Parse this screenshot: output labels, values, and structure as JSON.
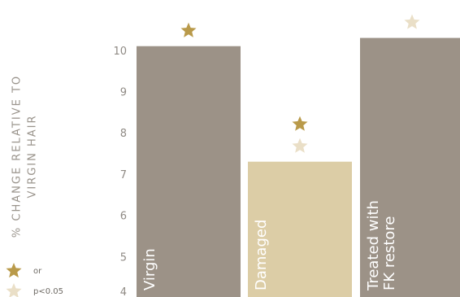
{
  "colors": {
    "bar_dark": "#9c9287",
    "bar_light": "#dccda6",
    "star_gold": "#b99a4a",
    "star_light": "#eadfc7",
    "text": "#8f8a84"
  },
  "legend": {
    "items": [
      {
        "icon": "star-gold-icon",
        "text": "or"
      },
      {
        "icon": "star-light-icon",
        "text": "p<0.05"
      }
    ]
  },
  "chart_data": {
    "type": "bar",
    "title": "",
    "ylabel": "% CHANGE RELATIVE TO VIRGIN HAIR",
    "ylabel_lines": [
      "% CHANGE RELATIVE TO",
      "VIRGIN HAIR"
    ],
    "xlabel": "",
    "ylim": [
      4,
      10.6
    ],
    "yticks": [
      4,
      5,
      6,
      7,
      8,
      9,
      10
    ],
    "categories": [
      "Virgin",
      "Damaged",
      "Treated with FK restore"
    ],
    "category_label_lines": [
      [
        "Virgin"
      ],
      [
        "Damaged"
      ],
      [
        "Treated with",
        "FK restore"
      ]
    ],
    "values": [
      10.1,
      7.3,
      10.3
    ],
    "bar_colors": [
      "#9c9287",
      "#dccda6",
      "#9c9287"
    ],
    "significance": [
      [
        "gold"
      ],
      [
        "gold",
        "light"
      ],
      [
        "light"
      ]
    ],
    "grid": false,
    "legend_position": "bottom-left"
  }
}
